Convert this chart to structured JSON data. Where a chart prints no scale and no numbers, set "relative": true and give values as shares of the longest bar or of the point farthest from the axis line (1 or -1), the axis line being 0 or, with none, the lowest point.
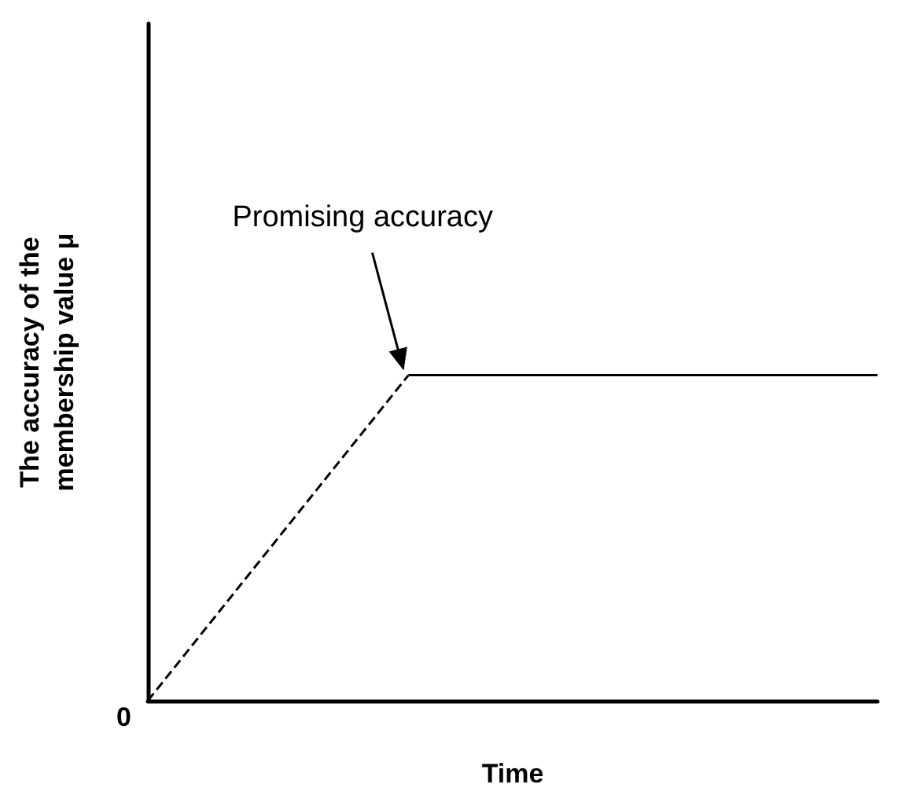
{
  "chart_data": {
    "type": "line",
    "relative": true,
    "xlabel": "Time",
    "ylabel": "The accuracy of the membership value μ",
    "categories": [
      null,
      null,
      null,
      null,
      null,
      null,
      null,
      null,
      null,
      null,
      null,
      null,
      null,
      null,
      null
    ],
    "series": [
      {
        "color": "#000000",
        "line_style": "dashed",
        "values": [
          0,
          0.2,
          0.4,
          0.6,
          0.8,
          1,
          null,
          null,
          null,
          null,
          null,
          null,
          null,
          null,
          null
        ]
      },
      {
        "color": "#000000",
        "line_style": "solid",
        "values": [
          null,
          null,
          null,
          null,
          null,
          1,
          1,
          1,
          1,
          1,
          1,
          1,
          1,
          1,
          1
        ]
      }
    ],
    "annotations": [
      "0",
      "Promising accuracy"
    ],
    "grid": false,
    "marker": "none"
  }
}
